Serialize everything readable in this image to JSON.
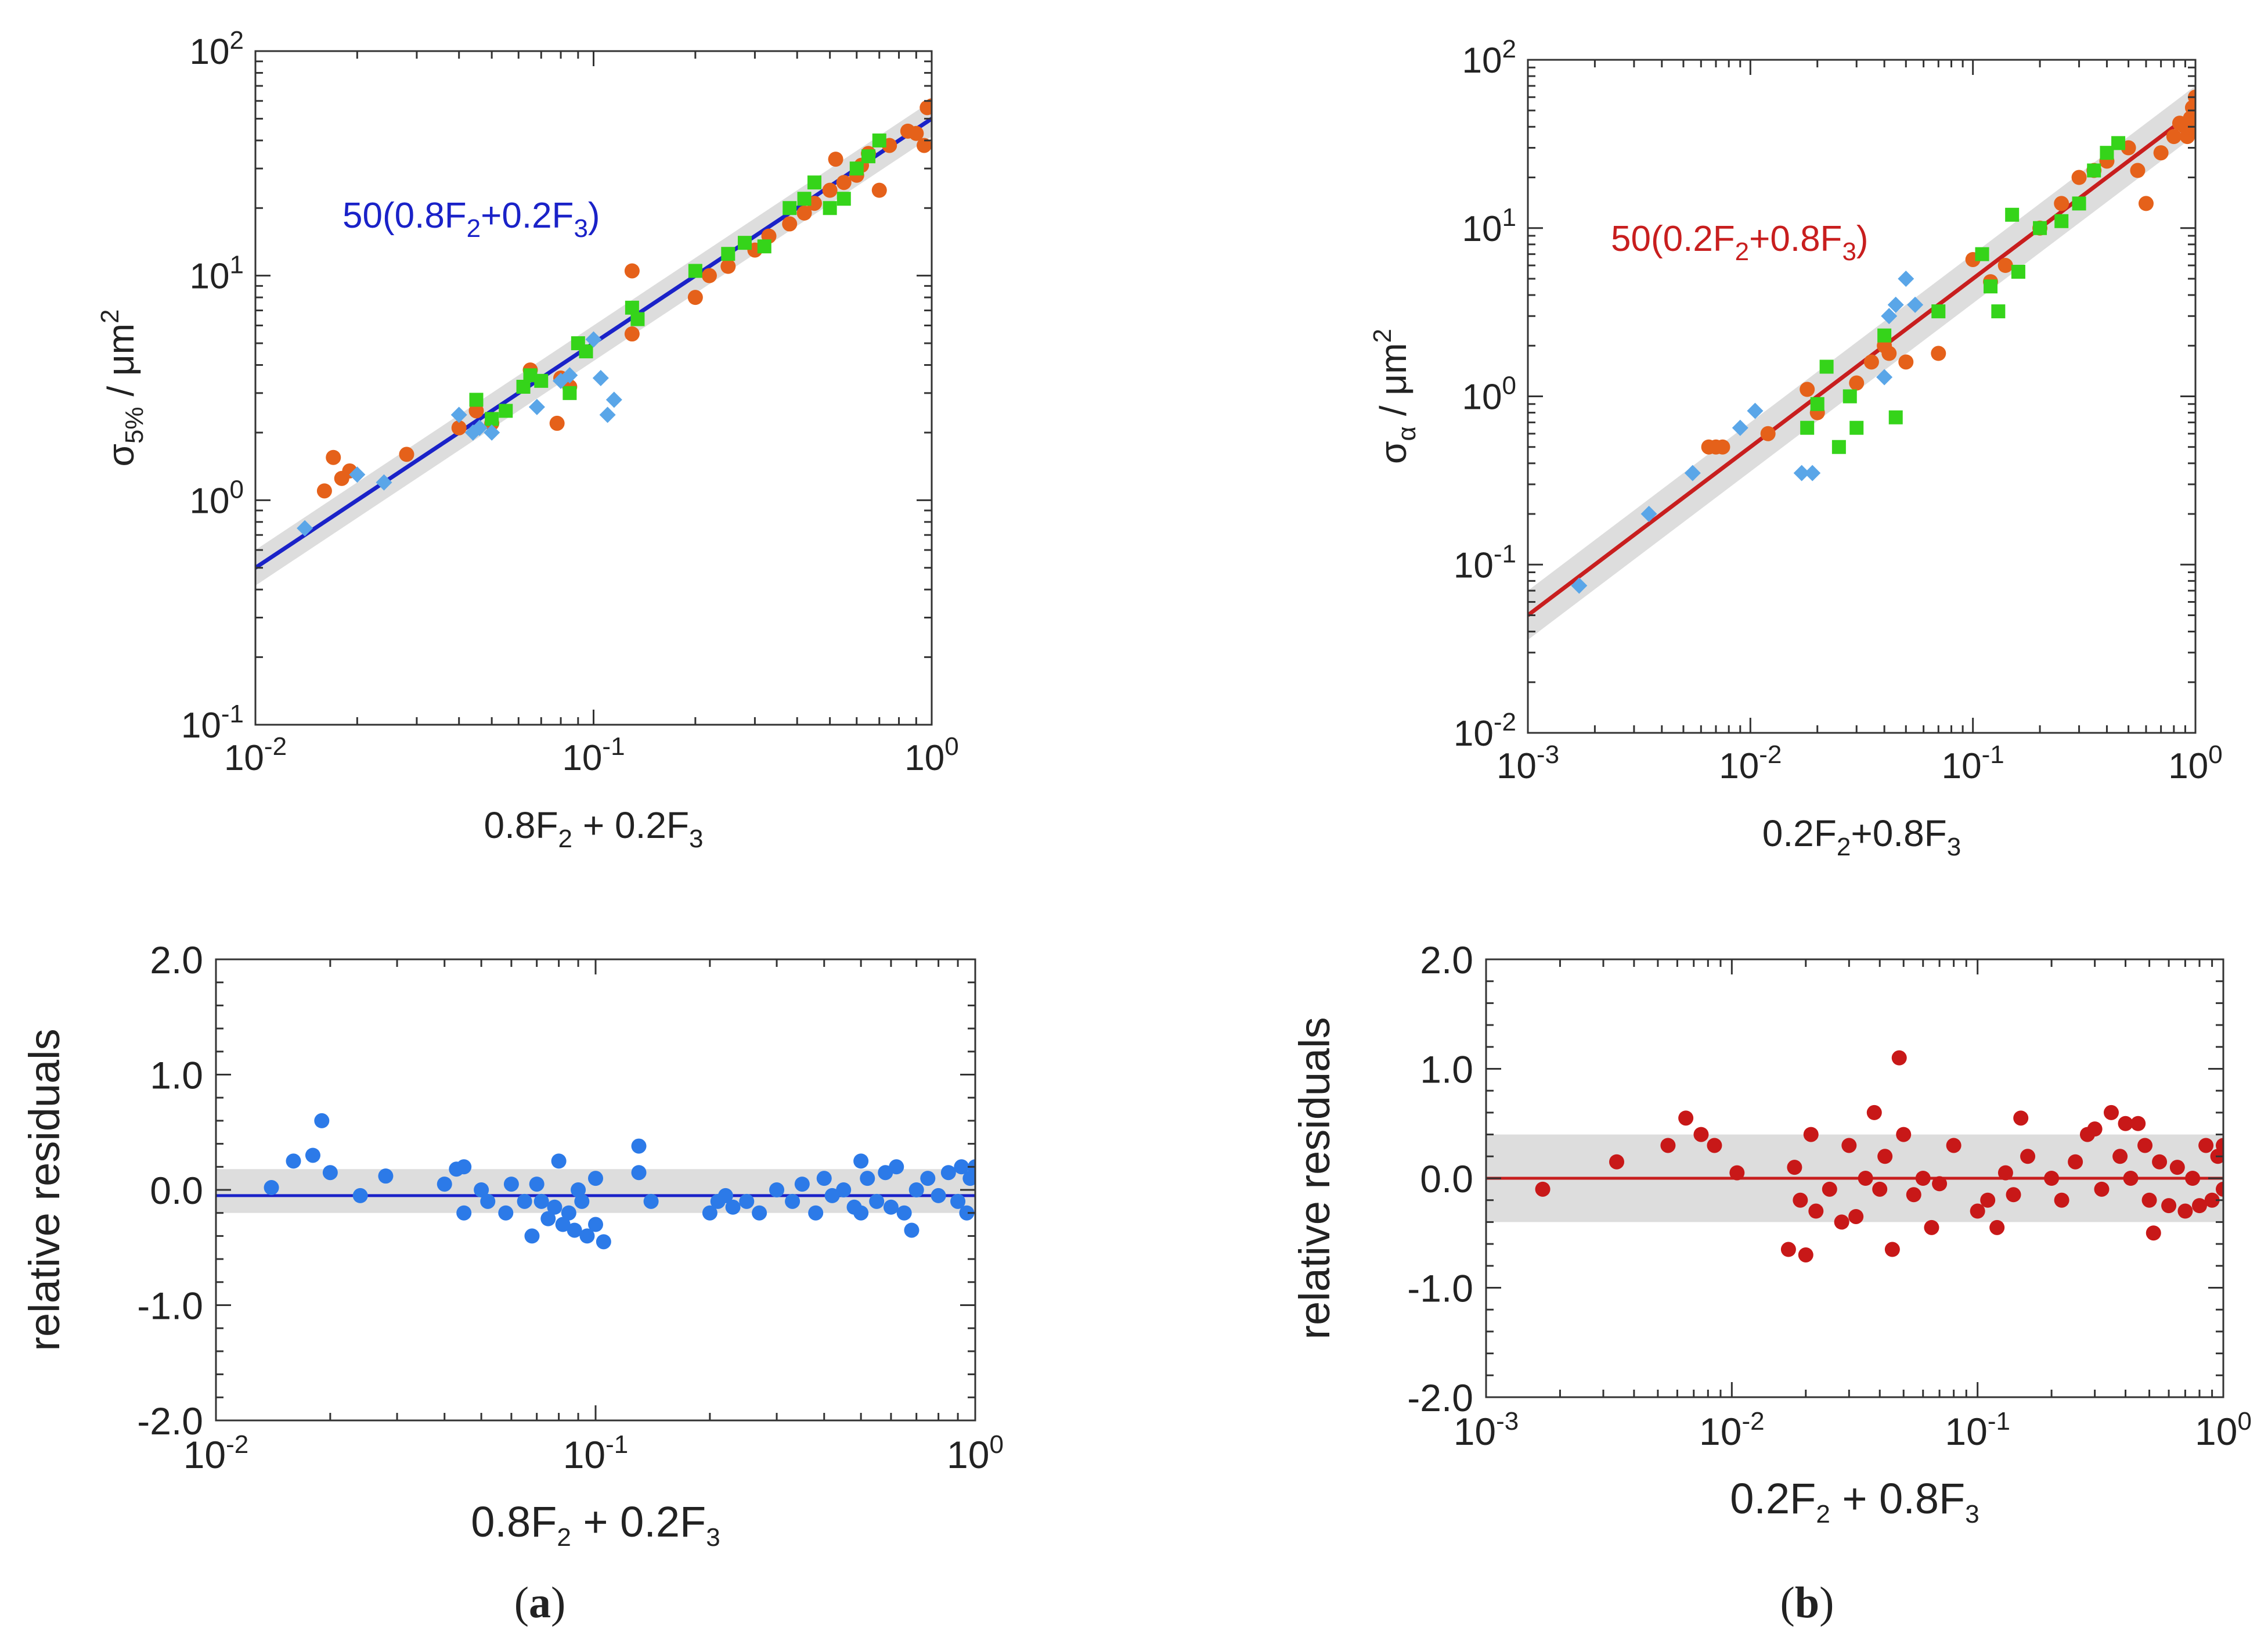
{
  "figure": {
    "panel_labels": [
      "a",
      "b"
    ]
  },
  "colors": {
    "orange": "#e5611a",
    "green": "#35d41a",
    "lightblue": "#5aa6e8",
    "blue_line": "#1a22c8",
    "red_line": "#c81e1e",
    "resid_blue": "#2c7ae8",
    "resid_red": "#c81818",
    "band": "#dddddd"
  },
  "chart_data": [
    {
      "id": "a-top",
      "type": "scatter",
      "xscale": "log",
      "yscale": "log",
      "xlim": [
        0.01,
        1
      ],
      "ylim": [
        0.1,
        100
      ],
      "xticks": [
        "10^-2",
        "10^-1",
        "10^0"
      ],
      "yticks": [
        "10^-1",
        "10^0",
        "10^1",
        "10^2"
      ],
      "xlabel": {
        "main": "0.8F",
        "sub1": "2",
        "mid": " + 0.2F",
        "sub2": "3"
      },
      "ylabel": {
        "main": "σ",
        "sub": "5%",
        "mid": "  /  μm",
        "sup": "2"
      },
      "annotation": {
        "pre": "50(0.8F",
        "sub1": "2",
        "mid": "+0.2F",
        "sub2": "3",
        "post": ")"
      },
      "fit": {
        "slope": 1,
        "coef": 50,
        "band_factor": 1.2,
        "color_key": "blue_line"
      },
      "series": [
        {
          "name": "orange",
          "marker": "circle",
          "color_key": "orange",
          "x": [
            0.016,
            0.017,
            0.018,
            0.019,
            0.028,
            0.04,
            0.045,
            0.05,
            0.065,
            0.078,
            0.08,
            0.085,
            0.13,
            0.13,
            0.2,
            0.22,
            0.25,
            0.3,
            0.33,
            0.38,
            0.42,
            0.45,
            0.5,
            0.52,
            0.55,
            0.6,
            0.62,
            0.65,
            0.7,
            0.75,
            0.85,
            0.9,
            0.95,
            0.97,
            1.0
          ],
          "y": [
            1.1,
            1.55,
            1.25,
            1.35,
            1.6,
            2.1,
            2.5,
            2.2,
            3.8,
            2.2,
            3.5,
            3.2,
            10.5,
            5.5,
            8,
            10,
            11,
            13,
            15,
            17,
            19,
            21,
            24,
            33,
            26,
            28,
            31,
            35,
            24,
            38,
            44,
            43,
            38,
            56,
            57
          ]
        },
        {
          "name": "green",
          "marker": "square",
          "color_key": "green",
          "x": [
            0.045,
            0.05,
            0.055,
            0.062,
            0.065,
            0.07,
            0.085,
            0.09,
            0.095,
            0.13,
            0.135,
            0.2,
            0.25,
            0.28,
            0.32,
            0.38,
            0.42,
            0.45,
            0.5,
            0.55,
            0.6,
            0.65,
            0.7
          ],
          "y": [
            2.8,
            2.3,
            2.5,
            3.2,
            3.6,
            3.4,
            3.0,
            5.0,
            4.6,
            7.2,
            6.4,
            10.5,
            12.5,
            14,
            13.5,
            20,
            22,
            26,
            20,
            22,
            30,
            34,
            40
          ]
        },
        {
          "name": "lightblue",
          "marker": "diamond",
          "color_key": "lightblue",
          "x": [
            0.014,
            0.02,
            0.024,
            0.04,
            0.044,
            0.046,
            0.05,
            0.068,
            0.08,
            0.085,
            0.1,
            0.105,
            0.11,
            0.115
          ],
          "y": [
            0.75,
            1.3,
            1.2,
            2.4,
            2.0,
            2.1,
            2.0,
            2.6,
            3.4,
            3.6,
            5.2,
            3.5,
            2.4,
            2.8
          ]
        }
      ]
    },
    {
      "id": "a-bottom",
      "type": "scatter",
      "xscale": "log",
      "yscale": "linear",
      "xlim": [
        0.01,
        1
      ],
      "ylim": [
        -2,
        2
      ],
      "xticks": [
        "10^-2",
        "10^-1",
        "10^0"
      ],
      "yticks": [
        "2.0",
        "1.0",
        "0.0",
        "-1.0",
        "-2.0"
      ],
      "ylabel_text": "relative residuals",
      "xlabel": {
        "main": "0.8F",
        "sub1": "2",
        "mid": " + 0.2F",
        "sub2": "3"
      },
      "line_y": -0.05,
      "band": [
        -0.2,
        0.18
      ],
      "series": [
        {
          "name": "residuals",
          "marker": "circle",
          "color_key": "resid_blue",
          "x": [
            0.014,
            0.016,
            0.018,
            0.019,
            0.02,
            0.024,
            0.028,
            0.04,
            0.043,
            0.045,
            0.045,
            0.05,
            0.052,
            0.058,
            0.06,
            0.065,
            0.068,
            0.07,
            0.072,
            0.075,
            0.078,
            0.08,
            0.082,
            0.085,
            0.088,
            0.09,
            0.092,
            0.095,
            0.1,
            0.1,
            0.105,
            0.13,
            0.13,
            0.14,
            0.2,
            0.21,
            0.22,
            0.23,
            0.25,
            0.27,
            0.3,
            0.33,
            0.35,
            0.38,
            0.4,
            0.42,
            0.45,
            0.48,
            0.5,
            0.5,
            0.52,
            0.55,
            0.58,
            0.6,
            0.62,
            0.65,
            0.68,
            0.7,
            0.75,
            0.8,
            0.85,
            0.9,
            0.92,
            0.95,
            0.97,
            1.0,
            1.0
          ],
          "y": [
            0.02,
            0.25,
            0.3,
            0.6,
            0.15,
            -0.05,
            0.12,
            0.05,
            0.18,
            0.2,
            -0.2,
            0.0,
            -0.1,
            -0.2,
            0.05,
            -0.1,
            -0.4,
            0.05,
            -0.1,
            -0.25,
            -0.15,
            0.25,
            -0.3,
            -0.2,
            -0.35,
            0.0,
            -0.1,
            -0.4,
            -0.3,
            0.1,
            -0.45,
            0.38,
            0.15,
            -0.1,
            -0.2,
            -0.1,
            -0.05,
            -0.15,
            -0.1,
            -0.2,
            0.0,
            -0.1,
            0.05,
            -0.2,
            0.1,
            -0.05,
            0.0,
            -0.15,
            0.25,
            -0.2,
            0.1,
            -0.1,
            0.15,
            -0.15,
            0.2,
            -0.2,
            -0.35,
            0.0,
            0.1,
            -0.05,
            0.15,
            -0.1,
            0.2,
            -0.2,
            0.1,
            0.15,
            0.2
          ]
        }
      ]
    },
    {
      "id": "b-top",
      "type": "scatter",
      "xscale": "log",
      "yscale": "log",
      "xlim": [
        0.001,
        1
      ],
      "ylim": [
        0.01,
        100
      ],
      "xticks": [
        "10^-3",
        "10^-2",
        "10^-1",
        "10^0"
      ],
      "yticks": [
        "10^-2",
        "10^-1",
        "10^0",
        "10^1",
        "10^2"
      ],
      "xlabel": {
        "main": "0.2F",
        "sub1": "2",
        "mid": "+0.8F",
        "sub2": "3"
      },
      "ylabel": {
        "main": "σ",
        "sub": "α",
        "mid": "  /  μm",
        "sup": "2"
      },
      "annotation": {
        "pre": "50(0.2F",
        "sub1": "2",
        "mid": "+0.8F",
        "sub2": "3",
        "post": ")"
      },
      "fit": {
        "slope": 1,
        "coef": 50,
        "band_factor": 1.4,
        "color_key": "red_line"
      },
      "series": [
        {
          "name": "orange",
          "marker": "circle",
          "color_key": "orange",
          "x": [
            0.0065,
            0.007,
            0.0075,
            0.012,
            0.018,
            0.02,
            0.03,
            0.035,
            0.04,
            0.042,
            0.05,
            0.07,
            0.1,
            0.12,
            0.14,
            0.2,
            0.25,
            0.3,
            0.35,
            0.4,
            0.5,
            0.55,
            0.6,
            0.7,
            0.8,
            0.85,
            0.9,
            0.92,
            0.95,
            0.97,
            1.0,
            1.0
          ],
          "y": [
            0.5,
            0.5,
            0.5,
            0.6,
            1.1,
            0.8,
            1.2,
            1.6,
            2.0,
            1.8,
            1.6,
            1.8,
            6.5,
            4.8,
            6.0,
            10,
            14,
            20,
            22,
            25,
            30,
            22,
            14,
            28,
            35,
            42,
            40,
            35,
            45,
            52,
            60,
            38
          ]
        },
        {
          "name": "green",
          "marker": "square",
          "color_key": "green",
          "x": [
            0.018,
            0.02,
            0.022,
            0.025,
            0.028,
            0.03,
            0.04,
            0.045,
            0.07,
            0.11,
            0.12,
            0.13,
            0.15,
            0.16,
            0.2,
            0.25,
            0.3,
            0.35,
            0.4,
            0.45
          ],
          "y": [
            0.65,
            0.9,
            1.5,
            0.5,
            1.0,
            0.65,
            2.3,
            0.75,
            3.2,
            7.0,
            4.5,
            3.2,
            12,
            5.5,
            10,
            11,
            14,
            22,
            28,
            32
          ]
        },
        {
          "name": "lightblue",
          "marker": "diamond",
          "color_key": "lightblue",
          "x": [
            0.0017,
            0.0035,
            0.0055,
            0.009,
            0.0105,
            0.017,
            0.019,
            0.04,
            0.042,
            0.045,
            0.05,
            0.055
          ],
          "y": [
            0.075,
            0.2,
            0.35,
            0.65,
            0.82,
            0.35,
            0.35,
            1.3,
            3.0,
            3.5,
            5.0,
            3.5
          ]
        }
      ]
    },
    {
      "id": "b-bottom",
      "type": "scatter",
      "xscale": "log",
      "yscale": "linear",
      "xlim": [
        0.001,
        1
      ],
      "ylim": [
        -2,
        2
      ],
      "xticks": [
        "10^-3",
        "10^-2",
        "10^-1",
        "10^0"
      ],
      "yticks": [
        "2.0",
        "1.0",
        "0.0",
        "-1.0",
        "-2.0"
      ],
      "ylabel_text": "relative residuals",
      "xlabel": {
        "main": "0.2F",
        "sub1": "2",
        "mid": " + 0.8F",
        "sub2": "3"
      },
      "line_y": 0.0,
      "band": [
        -0.4,
        0.4
      ],
      "series": [
        {
          "name": "residuals",
          "marker": "circle",
          "color_key": "resid_red",
          "x": [
            0.0017,
            0.0034,
            0.0055,
            0.0065,
            0.0075,
            0.0085,
            0.0105,
            0.017,
            0.018,
            0.019,
            0.02,
            0.021,
            0.022,
            0.025,
            0.028,
            0.03,
            0.032,
            0.035,
            0.038,
            0.04,
            0.042,
            0.045,
            0.048,
            0.05,
            0.055,
            0.06,
            0.065,
            0.07,
            0.08,
            0.1,
            0.11,
            0.12,
            0.13,
            0.14,
            0.15,
            0.16,
            0.2,
            0.22,
            0.25,
            0.28,
            0.3,
            0.32,
            0.35,
            0.38,
            0.4,
            0.42,
            0.45,
            0.48,
            0.5,
            0.52,
            0.55,
            0.6,
            0.65,
            0.7,
            0.75,
            0.8,
            0.85,
            0.9,
            0.95,
            1.0,
            1.0
          ],
          "y": [
            -0.1,
            0.15,
            0.3,
            0.55,
            0.4,
            0.3,
            0.05,
            -0.65,
            0.1,
            -0.2,
            -0.7,
            0.4,
            -0.3,
            -0.1,
            -0.4,
            0.3,
            -0.35,
            0.0,
            0.6,
            -0.1,
            0.2,
            -0.65,
            1.1,
            0.4,
            -0.15,
            0.0,
            -0.45,
            -0.05,
            0.3,
            -0.3,
            -0.2,
            -0.45,
            0.05,
            -0.15,
            0.55,
            0.2,
            0.0,
            -0.2,
            0.15,
            0.4,
            0.45,
            -0.1,
            0.6,
            0.2,
            0.5,
            0.0,
            0.5,
            0.3,
            -0.2,
            -0.5,
            0.15,
            -0.25,
            0.1,
            -0.3,
            0.0,
            -0.25,
            0.3,
            -0.2,
            0.2,
            0.3,
            -0.1
          ]
        }
      ]
    }
  ]
}
